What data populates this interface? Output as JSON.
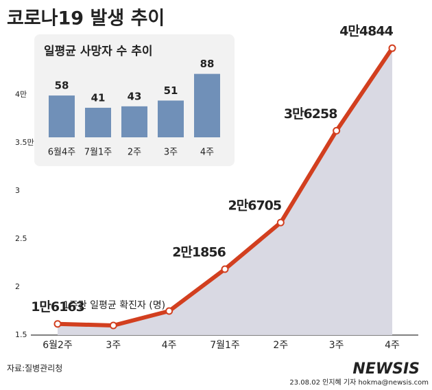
{
  "chart_data": [
    {
      "type": "line",
      "title": "코로나19 발생 추이",
      "annotation": "1주간 일평균 확진자 (명)",
      "categories": [
        "6월2주",
        "3주",
        "4주",
        "7월1주",
        "2주",
        "3주",
        "4주"
      ],
      "series": [
        {
          "color": "#d23f1f",
          "values": [
            1.6163,
            1.6,
            1.75,
            2.1856,
            2.6705,
            3.6258,
            4.4844
          ],
          "value_labels": [
            "1만6163",
            null,
            null,
            "2만1856",
            "2만6705",
            "3만6258",
            "4만4844"
          ]
        }
      ],
      "ylim": [
        1.5,
        4.7
      ],
      "yticks": [
        1.5,
        2,
        2.5,
        3,
        {
          "value": 3.5,
          "label": "3.5만"
        },
        {
          "value": 4,
          "label": "4만"
        }
      ],
      "source": "자료:질병관리청",
      "credit": "23.08.02 인지혜 기자 hokma@newsis.com",
      "logo": "NEWSIS"
    },
    {
      "type": "bar",
      "title": "일평균 사망자 수 추이",
      "categories": [
        "6월4주",
        "7월1주",
        "2주",
        "3주",
        "4주"
      ],
      "values": [
        58,
        41,
        43,
        51,
        88
      ],
      "color": "#7090b8"
    }
  ]
}
